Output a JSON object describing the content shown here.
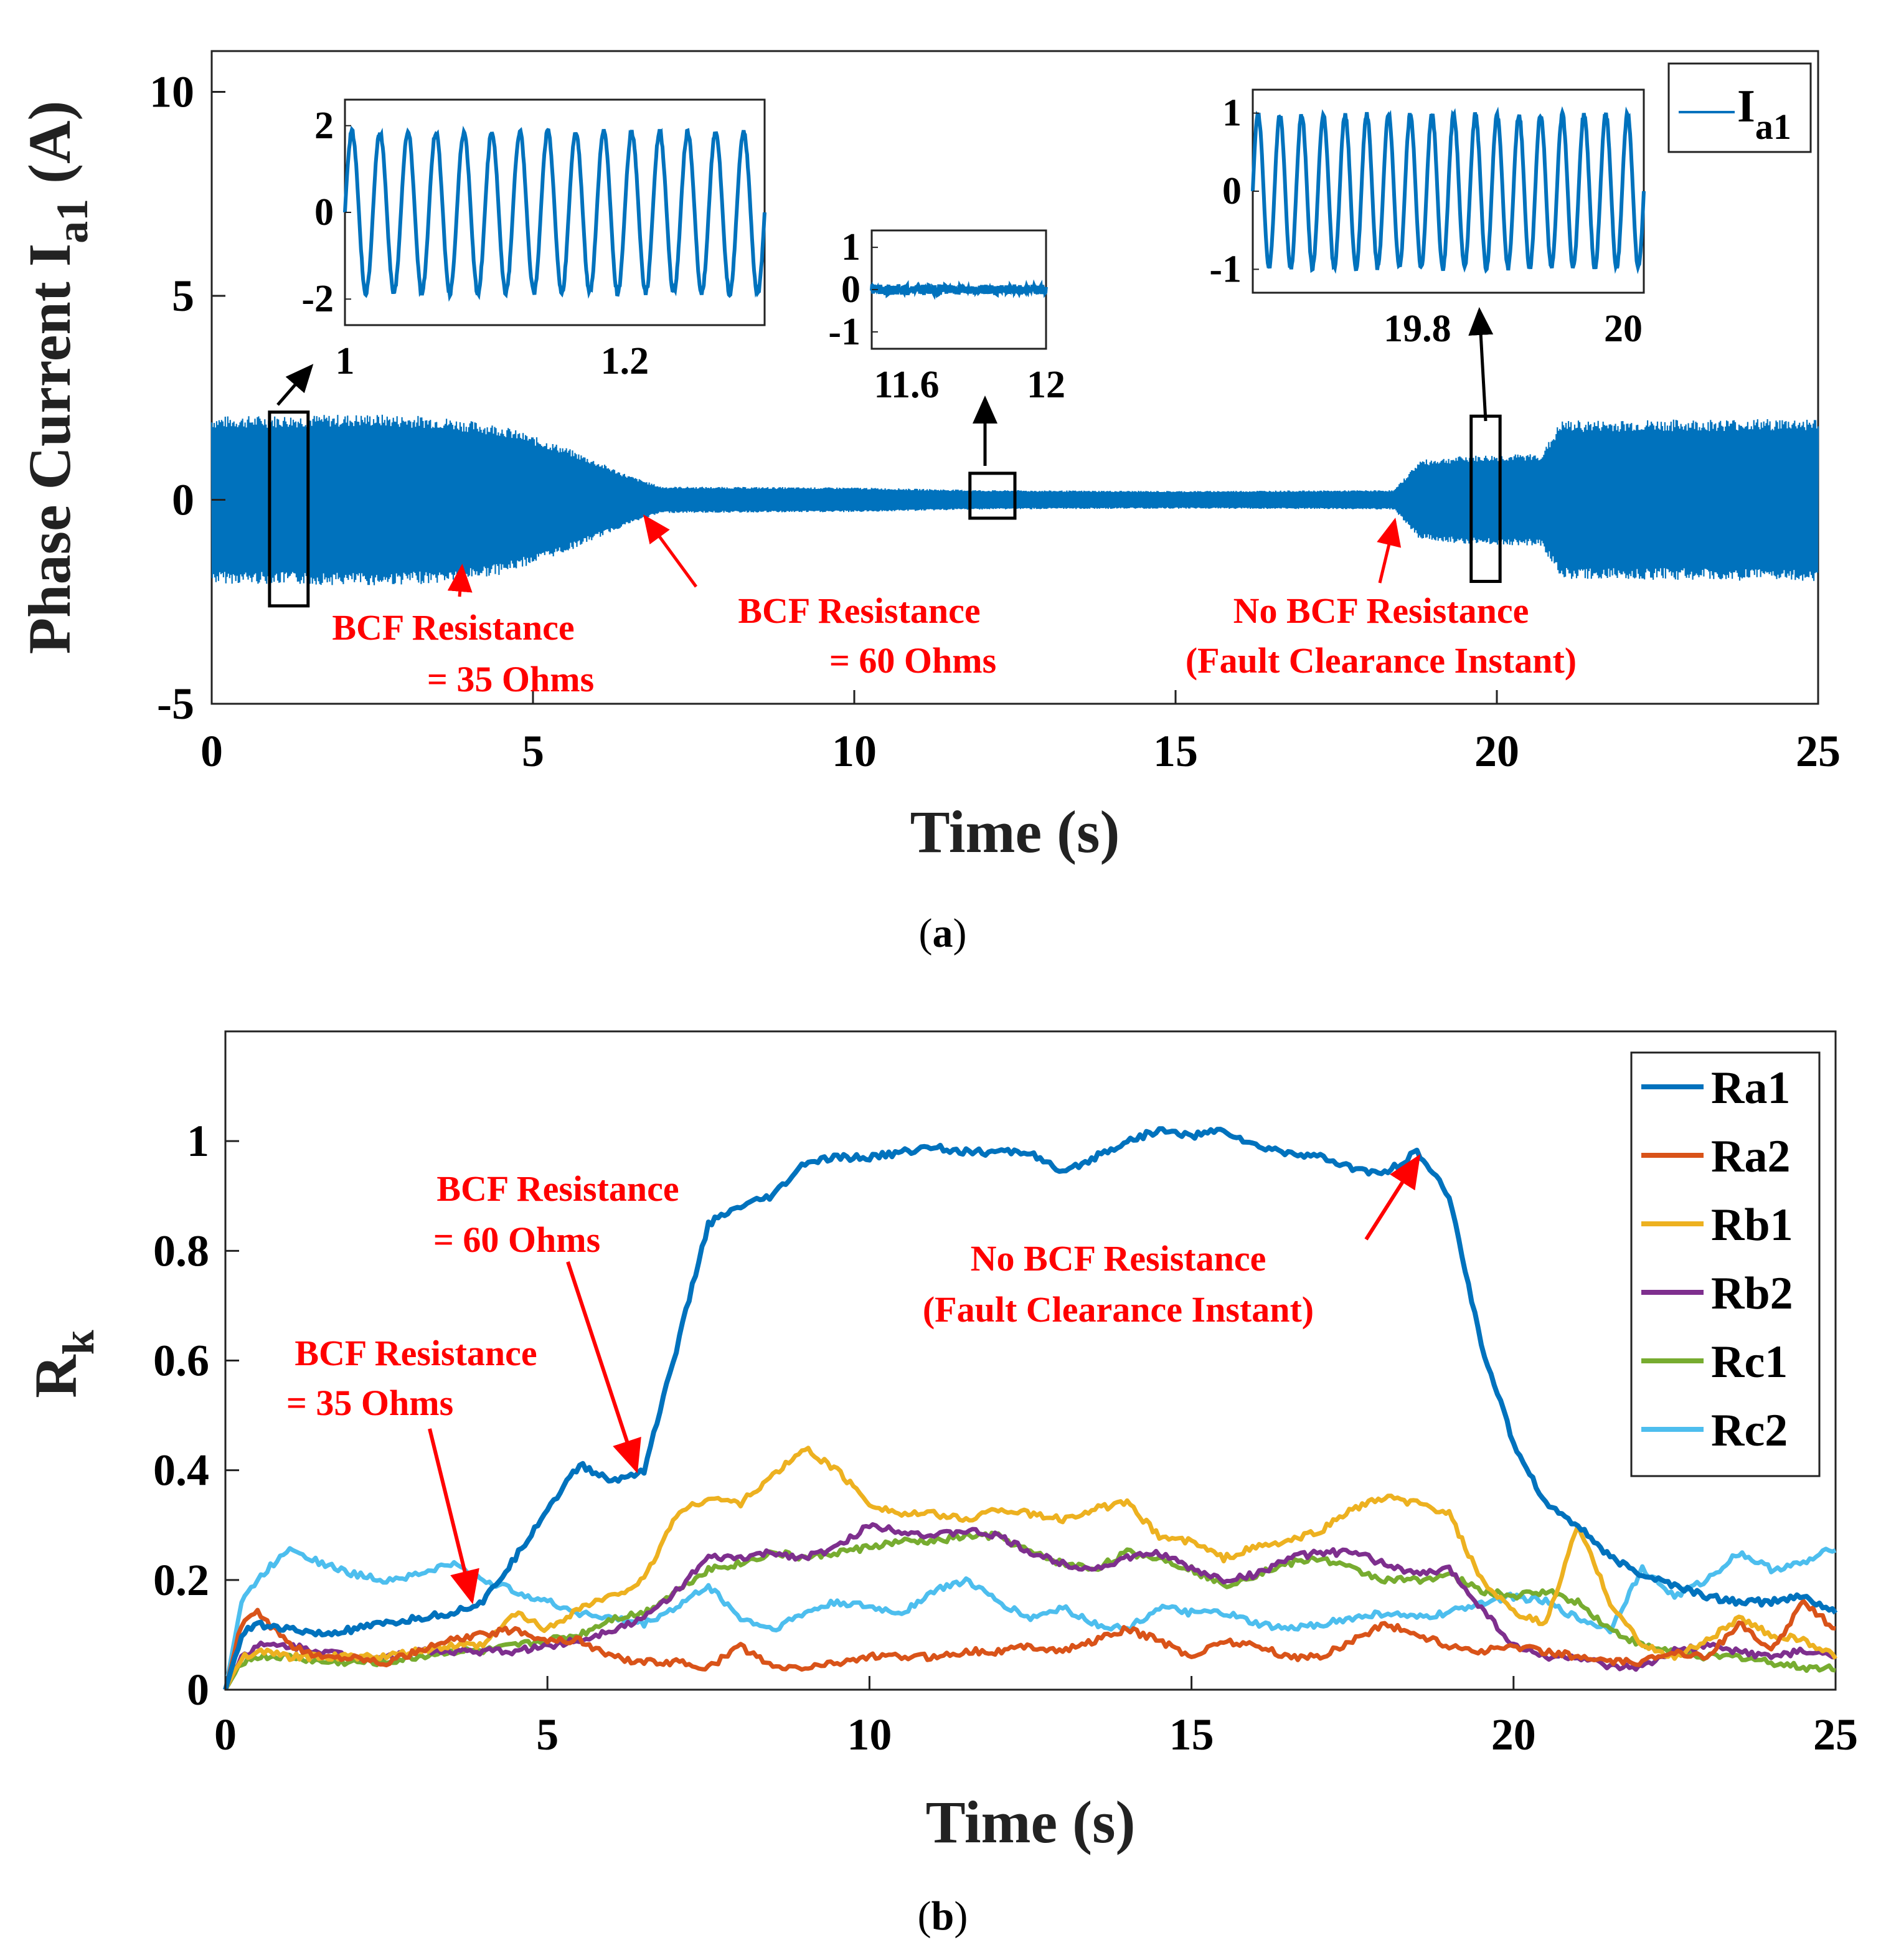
{
  "chart_data": [
    {
      "id": "a",
      "type": "line",
      "caption_letter": "a",
      "xlabel": "Time (s)",
      "ylabel_main": "Phase Current I",
      "ylabel_sub": "a1",
      "ylabel_unit": " (A)",
      "xlim": [
        0,
        25
      ],
      "ylim": [
        -5,
        11
      ],
      "xticks": [
        0,
        5,
        10,
        15,
        20,
        25
      ],
      "yticks": [
        -5,
        0,
        5,
        10
      ],
      "legend": {
        "main": "I",
        "sub": "a1",
        "position": "top-right"
      },
      "color": "#0072BD",
      "series": [
        {
          "name": "Ia1",
          "envelope": {
            "t": [
              0,
              2.5,
              3.5,
              4.5,
              5.5,
              6.5,
              7.0,
              10,
              12,
              15,
              18.4,
              18.8,
              19.5,
              20.7,
              21.0,
              25
            ],
            "amp": [
              1.9,
              1.95,
              1.9,
              1.7,
              1.2,
              0.55,
              0.3,
              0.28,
              0.22,
              0.2,
              0.22,
              0.9,
              1.0,
              1.05,
              1.8,
              1.85
            ]
          }
        }
      ],
      "insets": [
        {
          "xlim": [
            1.0,
            1.3
          ],
          "ylim": [
            -2.6,
            2.6
          ],
          "xticks": [
            1,
            1.2
          ],
          "yticks": [
            -2,
            0,
            2
          ],
          "amp": 1.85,
          "cycles": 15,
          "box_t": [
            0.9,
            1.5
          ],
          "box_y": [
            -2.6,
            2.15
          ]
        },
        {
          "xlim": [
            11.5,
            12.0
          ],
          "ylim": [
            -1.4,
            1.4
          ],
          "xticks": [
            11.6,
            12
          ],
          "yticks": [
            -1,
            0,
            1
          ],
          "amp": 0.1,
          "cycles": 40,
          "box_t": [
            11.8,
            12.5
          ],
          "box_y": [
            -0.45,
            0.65
          ]
        },
        {
          "xlim": [
            19.64,
            20.02
          ],
          "ylim": [
            -1.3,
            1.3
          ],
          "xticks": [
            19.8,
            20
          ],
          "yticks": [
            -1,
            0,
            1
          ],
          "amp": 0.98,
          "cycles": 18,
          "box_t": [
            19.6,
            20.05
          ],
          "box_y": [
            -2.0,
            2.05
          ]
        }
      ],
      "annotations": [
        {
          "lines": [
            "BCF Resistance",
            "= 35 Ohms"
          ]
        },
        {
          "lines": [
            "BCF Resistance",
            "= 60 Ohms"
          ]
        },
        {
          "lines": [
            "No BCF Resistance",
            "(Fault Clearance Instant)"
          ]
        }
      ]
    },
    {
      "id": "b",
      "type": "line",
      "caption_letter": "b",
      "xlabel": "Time (s)",
      "ylabel_main": "R",
      "ylabel_sub": "k",
      "xlim": [
        0,
        25
      ],
      "ylim": [
        0,
        1.2
      ],
      "xticks": [
        0,
        5,
        10,
        15,
        20,
        25
      ],
      "yticks": [
        0,
        0.2,
        0.4,
        0.6,
        0.8,
        1
      ],
      "legend_position": "top-right",
      "x": [
        0,
        0.25,
        0.5,
        1,
        1.5,
        2,
        2.5,
        3,
        3.5,
        4,
        4.5,
        5,
        5.5,
        6,
        6.5,
        7,
        7.5,
        8,
        8.5,
        9,
        9.5,
        10,
        10.5,
        11,
        11.5,
        12,
        12.5,
        13,
        13.5,
        14,
        14.5,
        15,
        15.5,
        16,
        16.5,
        17,
        17.5,
        18,
        18.5,
        19,
        19.5,
        20,
        20.5,
        21,
        21.5,
        22,
        22.5,
        23,
        23.5,
        24,
        24.5,
        25
      ],
      "series": [
        {
          "name": "Ra1",
          "color": "#0072BD",
          "values": [
            0,
            0.1,
            0.12,
            0.11,
            0.1,
            0.11,
            0.12,
            0.13,
            0.14,
            0.16,
            0.24,
            0.33,
            0.41,
            0.38,
            0.4,
            0.62,
            0.85,
            0.88,
            0.9,
            0.96,
            0.97,
            0.97,
            0.98,
            0.99,
            0.98,
            0.98,
            0.98,
            0.94,
            0.97,
            1.0,
            1.02,
            1.01,
            1.02,
            0.99,
            0.98,
            0.97,
            0.95,
            0.94,
            0.98,
            0.9,
            0.63,
            0.45,
            0.34,
            0.3,
            0.24,
            0.21,
            0.19,
            0.17,
            0.16,
            0.16,
            0.17,
            0.14
          ]
        },
        {
          "name": "Ra2",
          "color": "#D95319",
          "values": [
            0,
            0.12,
            0.14,
            0.08,
            0.06,
            0.06,
            0.05,
            0.07,
            0.09,
            0.1,
            0.11,
            0.09,
            0.09,
            0.06,
            0.05,
            0.05,
            0.04,
            0.08,
            0.04,
            0.04,
            0.05,
            0.06,
            0.06,
            0.06,
            0.07,
            0.07,
            0.08,
            0.07,
            0.09,
            0.11,
            0.09,
            0.06,
            0.09,
            0.08,
            0.06,
            0.06,
            0.09,
            0.12,
            0.1,
            0.08,
            0.07,
            0.08,
            0.07,
            0.06,
            0.05,
            0.05,
            0.07,
            0.06,
            0.12,
            0.07,
            0.16,
            0.11
          ]
        },
        {
          "name": "Rb1",
          "color": "#EDB120",
          "values": [
            0,
            0.06,
            0.07,
            0.06,
            0.06,
            0.06,
            0.06,
            0.07,
            0.08,
            0.08,
            0.14,
            0.11,
            0.15,
            0.17,
            0.2,
            0.32,
            0.35,
            0.34,
            0.39,
            0.44,
            0.4,
            0.34,
            0.32,
            0.32,
            0.31,
            0.33,
            0.32,
            0.31,
            0.33,
            0.34,
            0.28,
            0.27,
            0.24,
            0.26,
            0.27,
            0.29,
            0.33,
            0.35,
            0.34,
            0.32,
            0.2,
            0.14,
            0.12,
            0.3,
            0.16,
            0.08,
            0.06,
            0.09,
            0.13,
            0.1,
            0.09,
            0.06
          ]
        },
        {
          "name": "Rb2",
          "color": "#7E2F8E",
          "values": [
            0,
            0.06,
            0.08,
            0.08,
            0.07,
            0.06,
            0.06,
            0.07,
            0.07,
            0.07,
            0.07,
            0.08,
            0.09,
            0.11,
            0.13,
            0.18,
            0.24,
            0.24,
            0.25,
            0.24,
            0.26,
            0.3,
            0.29,
            0.28,
            0.29,
            0.28,
            0.25,
            0.23,
            0.22,
            0.24,
            0.25,
            0.22,
            0.2,
            0.21,
            0.24,
            0.25,
            0.25,
            0.23,
            0.21,
            0.22,
            0.15,
            0.08,
            0.06,
            0.06,
            0.04,
            0.04,
            0.07,
            0.08,
            0.07,
            0.06,
            0.07,
            0.06
          ]
        },
        {
          "name": "Rc1",
          "color": "#77AC30",
          "values": [
            0,
            0.05,
            0.06,
            0.06,
            0.05,
            0.05,
            0.05,
            0.06,
            0.07,
            0.07,
            0.08,
            0.09,
            0.1,
            0.13,
            0.14,
            0.18,
            0.22,
            0.23,
            0.25,
            0.24,
            0.25,
            0.26,
            0.27,
            0.27,
            0.28,
            0.28,
            0.25,
            0.23,
            0.22,
            0.25,
            0.24,
            0.22,
            0.19,
            0.21,
            0.23,
            0.24,
            0.22,
            0.2,
            0.2,
            0.21,
            0.18,
            0.17,
            0.18,
            0.16,
            0.11,
            0.08,
            0.07,
            0.06,
            0.06,
            0.05,
            0.04,
            0.04
          ]
        },
        {
          "name": "Rc2",
          "color": "#4DBEEE",
          "values": [
            0,
            0.16,
            0.2,
            0.26,
            0.23,
            0.21,
            0.2,
            0.21,
            0.23,
            0.2,
            0.18,
            0.16,
            0.14,
            0.13,
            0.12,
            0.15,
            0.19,
            0.13,
            0.11,
            0.14,
            0.16,
            0.15,
            0.14,
            0.18,
            0.2,
            0.16,
            0.13,
            0.15,
            0.12,
            0.11,
            0.15,
            0.14,
            0.14,
            0.12,
            0.11,
            0.12,
            0.13,
            0.14,
            0.13,
            0.14,
            0.16,
            0.17,
            0.16,
            0.13,
            0.11,
            0.22,
            0.17,
            0.2,
            0.25,
            0.22,
            0.23,
            0.26
          ]
        }
      ],
      "annotations": [
        {
          "lines": [
            "BCF Resistance",
            "= 35 Ohms"
          ]
        },
        {
          "lines": [
            "BCF Resistance",
            "= 60 Ohms"
          ]
        },
        {
          "lines": [
            "No BCF Resistance",
            "(Fault Clearance Instant)"
          ]
        }
      ]
    }
  ]
}
